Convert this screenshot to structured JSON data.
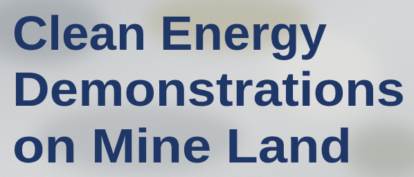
{
  "title": {
    "lines": [
      "Clean Energy",
      "Demonstrations",
      "on Mine Land"
    ]
  }
}
